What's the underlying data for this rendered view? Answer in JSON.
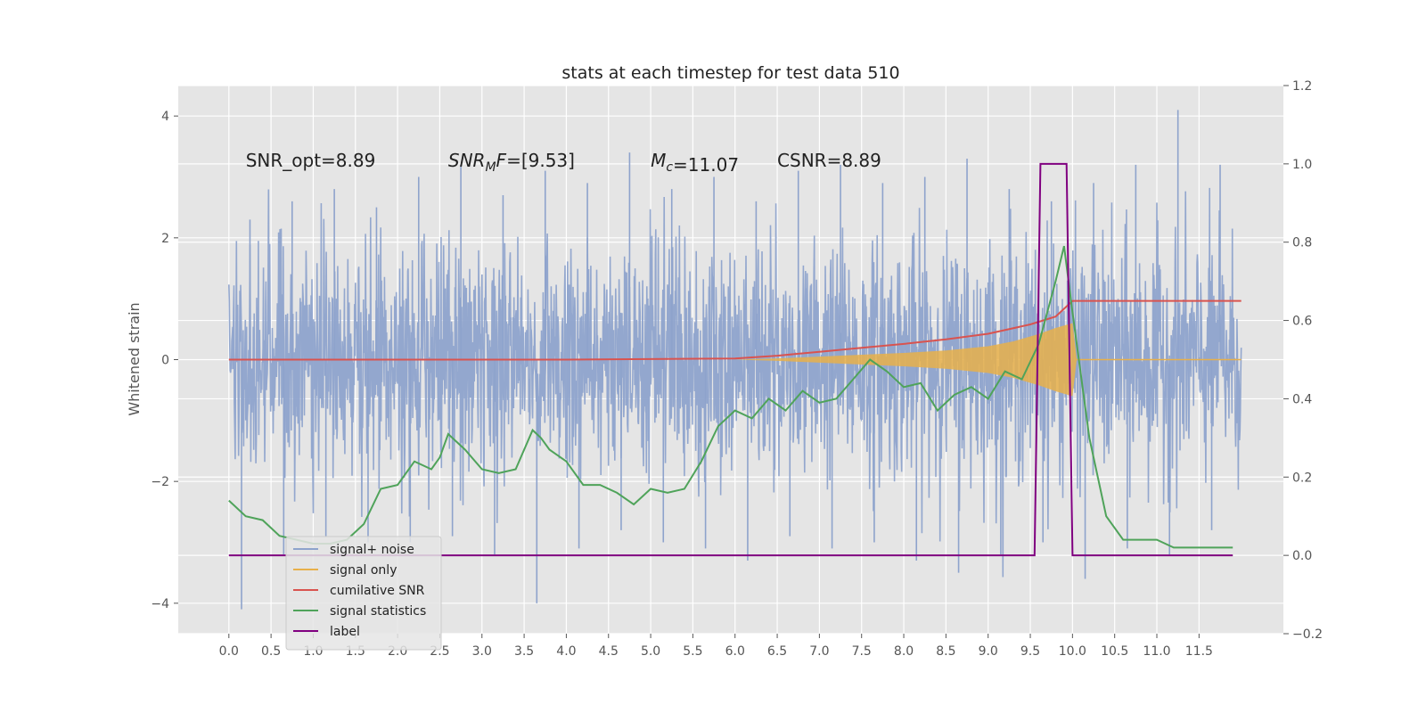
{
  "chart_data": {
    "type": "line",
    "title": "stats at each timestep for test data 510",
    "ylabel_left": "Whitened strain",
    "ylabel_right": "",
    "xlabel": "",
    "xlim": [
      -0.6,
      12.5
    ],
    "ylim_left": [
      -4.5,
      4.5
    ],
    "ylim_right": [
      -0.2,
      1.2
    ],
    "x_ticks": [
      "0.0",
      "0.5",
      "1.0",
      "1.5",
      "2.0",
      "2.5",
      "3.0",
      "3.5",
      "4.0",
      "4.5",
      "5.0",
      "5.5",
      "6.0",
      "6.5",
      "7.0",
      "7.5",
      "8.0",
      "8.5",
      "9.0",
      "9.5",
      "10.0",
      "10.5",
      "11.0",
      "11.5"
    ],
    "y_ticks_left": [
      "−4",
      "−2",
      "0",
      "2",
      "4"
    ],
    "y_ticks_right": [
      "−0.2",
      "0.0",
      "0.2",
      "0.4",
      "0.6",
      "0.8",
      "1.0",
      "1.2"
    ],
    "grid": true,
    "legend_position": "lower-left",
    "annotations": [
      {
        "x": 0.2,
        "y": 3.2,
        "text": "SNR_opt=8.89",
        "italic_part": ""
      },
      {
        "x": 2.6,
        "y": 3.2,
        "text": "=[9.53]",
        "italic_part": "SNR",
        "sub": "M",
        "italic_tail": "F"
      },
      {
        "x": 5.0,
        "y": 3.2,
        "text": "=11.07",
        "italic_part": "M",
        "sub": "c",
        "italic_tail": ""
      },
      {
        "x": 6.5,
        "y": 3.2,
        "text": "CSNR=8.89",
        "italic_part": ""
      }
    ],
    "series": [
      {
        "name": "signal+ noise",
        "axis": "left",
        "color": "#8ea3cc",
        "style": "noise",
        "x_range": [
          0.0,
          12.0
        ],
        "typical_range": [
          -2.0,
          2.0
        ],
        "envelope_peaks": [
          2.3,
          2.6,
          2.8,
          2.5,
          3.0,
          3.2,
          2.7,
          3.1,
          2.9,
          3.4,
          2.8,
          3.0,
          2.6,
          3.1,
          3.2,
          2.9,
          3.0,
          3.3,
          2.8,
          2.6,
          2.9,
          3.2,
          4.1,
          3.2
        ],
        "envelope_troughs": [
          -4.1,
          -3.2,
          -2.9,
          -3.0,
          -3.0,
          -2.9,
          -3.2,
          -4.0,
          -3.1,
          -2.8,
          -3.0,
          -3.1,
          -3.3,
          -2.9,
          -3.1,
          -3.0,
          -3.3,
          -3.5,
          -3.2,
          -3.0,
          -3.6,
          -3.1,
          -3.2,
          -2.8
        ]
      },
      {
        "name": "signal only",
        "axis": "left",
        "color": "#e8b04a",
        "style": "chirp",
        "x": [
          6.0,
          6.5,
          7.0,
          7.5,
          8.0,
          8.5,
          9.0,
          9.3,
          9.6,
          9.8,
          10.0,
          10.05
        ],
        "amplitude": [
          0.0,
          0.02,
          0.05,
          0.08,
          0.11,
          0.15,
          0.22,
          0.3,
          0.42,
          0.52,
          0.6,
          0.0
        ]
      },
      {
        "name": "cumilative SNR",
        "axis": "right",
        "color": "#d9534f",
        "x": [
          0.0,
          2.0,
          4.0,
          6.0,
          6.5,
          7.0,
          7.5,
          8.0,
          8.5,
          9.0,
          9.5,
          9.8,
          10.0,
          12.0
        ],
        "values": [
          0.5,
          0.5,
          0.5,
          0.503,
          0.51,
          0.52,
          0.53,
          0.54,
          0.552,
          0.566,
          0.59,
          0.61,
          0.65,
          0.65
        ]
      },
      {
        "name": "signal statistics",
        "axis": "right",
        "color": "#4fa35a",
        "x": [
          0.0,
          0.2,
          0.4,
          0.6,
          0.8,
          1.0,
          1.2,
          1.4,
          1.6,
          1.8,
          2.0,
          2.2,
          2.4,
          2.5,
          2.6,
          2.8,
          3.0,
          3.2,
          3.4,
          3.6,
          3.7,
          3.8,
          4.0,
          4.2,
          4.4,
          4.6,
          4.8,
          5.0,
          5.2,
          5.4,
          5.6,
          5.8,
          6.0,
          6.2,
          6.4,
          6.6,
          6.8,
          7.0,
          7.2,
          7.4,
          7.6,
          7.8,
          8.0,
          8.2,
          8.4,
          8.6,
          8.8,
          9.0,
          9.2,
          9.4,
          9.6,
          9.8,
          9.9,
          10.0,
          10.2,
          10.4,
          10.6,
          10.8,
          11.0,
          11.2,
          11.6,
          11.9
        ],
        "values": [
          0.14,
          0.1,
          0.09,
          0.05,
          0.04,
          0.03,
          0.03,
          0.04,
          0.08,
          0.17,
          0.18,
          0.24,
          0.22,
          0.25,
          0.31,
          0.27,
          0.22,
          0.21,
          0.22,
          0.32,
          0.3,
          0.27,
          0.24,
          0.18,
          0.18,
          0.16,
          0.13,
          0.17,
          0.16,
          0.17,
          0.24,
          0.33,
          0.37,
          0.35,
          0.4,
          0.37,
          0.42,
          0.39,
          0.4,
          0.45,
          0.5,
          0.47,
          0.43,
          0.44,
          0.37,
          0.41,
          0.43,
          0.4,
          0.47,
          0.45,
          0.54,
          0.7,
          0.79,
          0.62,
          0.3,
          0.1,
          0.04,
          0.04,
          0.04,
          0.02,
          0.02,
          0.02
        ]
      },
      {
        "name": "label",
        "axis": "right",
        "color": "#800080",
        "x": [
          0.0,
          9.55,
          9.62,
          9.93,
          10.0,
          11.9
        ],
        "values": [
          0.0,
          0.0,
          1.0,
          1.0,
          0.0,
          0.0
        ]
      }
    ]
  }
}
